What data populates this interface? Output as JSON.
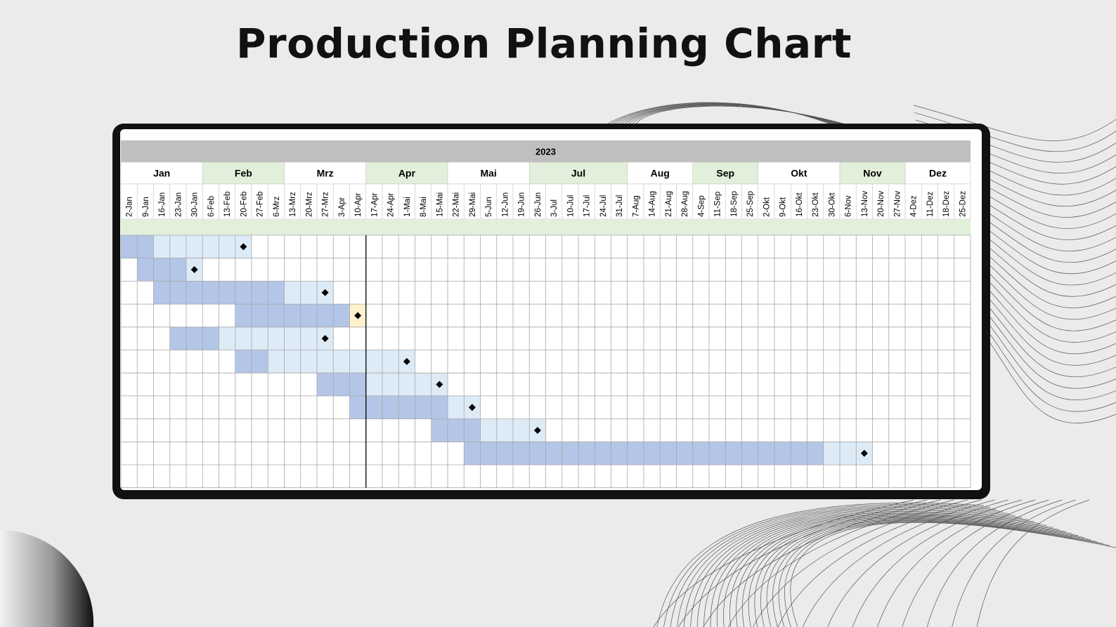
{
  "page_title": "Production Planning Chart",
  "colors": {
    "background": "#ebebeb",
    "frame": "#111111",
    "year_band": "#bfbfbf",
    "month_alt": "#e2efda",
    "bar_planned": "#b4c6e7",
    "bar_light": "#ddebf7",
    "milestone_highlight": "#fff2cc",
    "grid": "#a6a6a6"
  },
  "chart_data": {
    "type": "gantt",
    "title": "Production Planning Chart",
    "year": "2023",
    "months": [
      {
        "label": "Jan",
        "weeks": 5
      },
      {
        "label": "Feb",
        "weeks": 5
      },
      {
        "label": "Mrz",
        "weeks": 5
      },
      {
        "label": "Apr",
        "weeks": 5
      },
      {
        "label": "Mai",
        "weeks": 5
      },
      {
        "label": "Jul",
        "weeks": 6
      },
      {
        "label": "Aug",
        "weeks": 4
      },
      {
        "label": "Sep",
        "weeks": 4
      },
      {
        "label": "Okt",
        "weeks": 5
      },
      {
        "label": "Nov",
        "weeks": 4
      },
      {
        "label": "Dez",
        "weeks": 4
      }
    ],
    "weeks": [
      "2-Jan",
      "9-Jan",
      "16-Jan",
      "23-Jan",
      "30-Jan",
      "6-Feb",
      "13-Feb",
      "20-Feb",
      "27-Feb",
      "6-Mrz",
      "13-Mrz",
      "20-Mrz",
      "27-Mrz",
      "3-Apr",
      "10-Apr",
      "17-Apr",
      "24-Apr",
      "1-Mai",
      "8-Mai",
      "15-Mai",
      "22-Mai",
      "29-Mai",
      "5-Jun",
      "12-Jun",
      "19-Jun",
      "26-Jun",
      "3-Jul",
      "10-Jul",
      "17-Jul",
      "24-Jul",
      "31-Jul",
      "7-Aug",
      "14-Aug",
      "21-Aug",
      "28-Aug",
      "4-Sep",
      "11-Sep",
      "18-Sep",
      "25-Sep",
      "2-Okt",
      "9-Okt",
      "16-Okt",
      "23-Okt",
      "30-Okt",
      "6-Nov",
      "13-Nov",
      "20-Nov",
      "27-Nov",
      "4-Dez",
      "11-Dez",
      "18-Dez",
      "25-Dez"
    ],
    "today_marker": "10-Apr",
    "tasks": [
      {
        "dark_start": "2-Jan",
        "dark_end": "9-Jan",
        "light_end": "20-Feb",
        "milestone": "20-Feb",
        "milestone_highlight": false
      },
      {
        "dark_start": "9-Jan",
        "dark_end": "23-Jan",
        "light_end": "30-Jan",
        "milestone": "30-Jan",
        "milestone_highlight": false
      },
      {
        "dark_start": "16-Jan",
        "dark_end": "6-Mrz",
        "light_end": "27-Mrz",
        "milestone": "27-Mrz",
        "milestone_highlight": false
      },
      {
        "dark_start": "20-Feb",
        "dark_end": "3-Apr",
        "light_end": "10-Apr",
        "milestone": "10-Apr",
        "milestone_highlight": true
      },
      {
        "dark_start": "23-Jan",
        "dark_end": "6-Feb",
        "light_end": "27-Mrz",
        "milestone": "27-Mrz",
        "milestone_highlight": false
      },
      {
        "dark_start": "20-Feb",
        "dark_end": "27-Feb",
        "light_end": "1-Mai",
        "milestone": "1-Mai",
        "milestone_highlight": false
      },
      {
        "dark_start": "27-Mrz",
        "dark_end": "10-Apr",
        "light_end": "15-Mai",
        "milestone": "15-Mai",
        "milestone_highlight": false
      },
      {
        "dark_start": "10-Apr",
        "dark_end": "15-Mai",
        "light_end": "29-Mai",
        "milestone": "29-Mai",
        "milestone_highlight": false
      },
      {
        "dark_start": "15-Mai",
        "dark_end": "29-Mai",
        "light_end": "26-Jun",
        "milestone": "26-Jun",
        "milestone_highlight": false
      },
      {
        "dark_start": "29-Mai",
        "dark_end": "23-Okt",
        "light_end": "13-Nov",
        "milestone": "13-Nov",
        "milestone_highlight": false
      },
      {
        "dark_start": null,
        "dark_end": null,
        "light_end": null,
        "milestone": null,
        "milestone_highlight": false
      }
    ]
  }
}
